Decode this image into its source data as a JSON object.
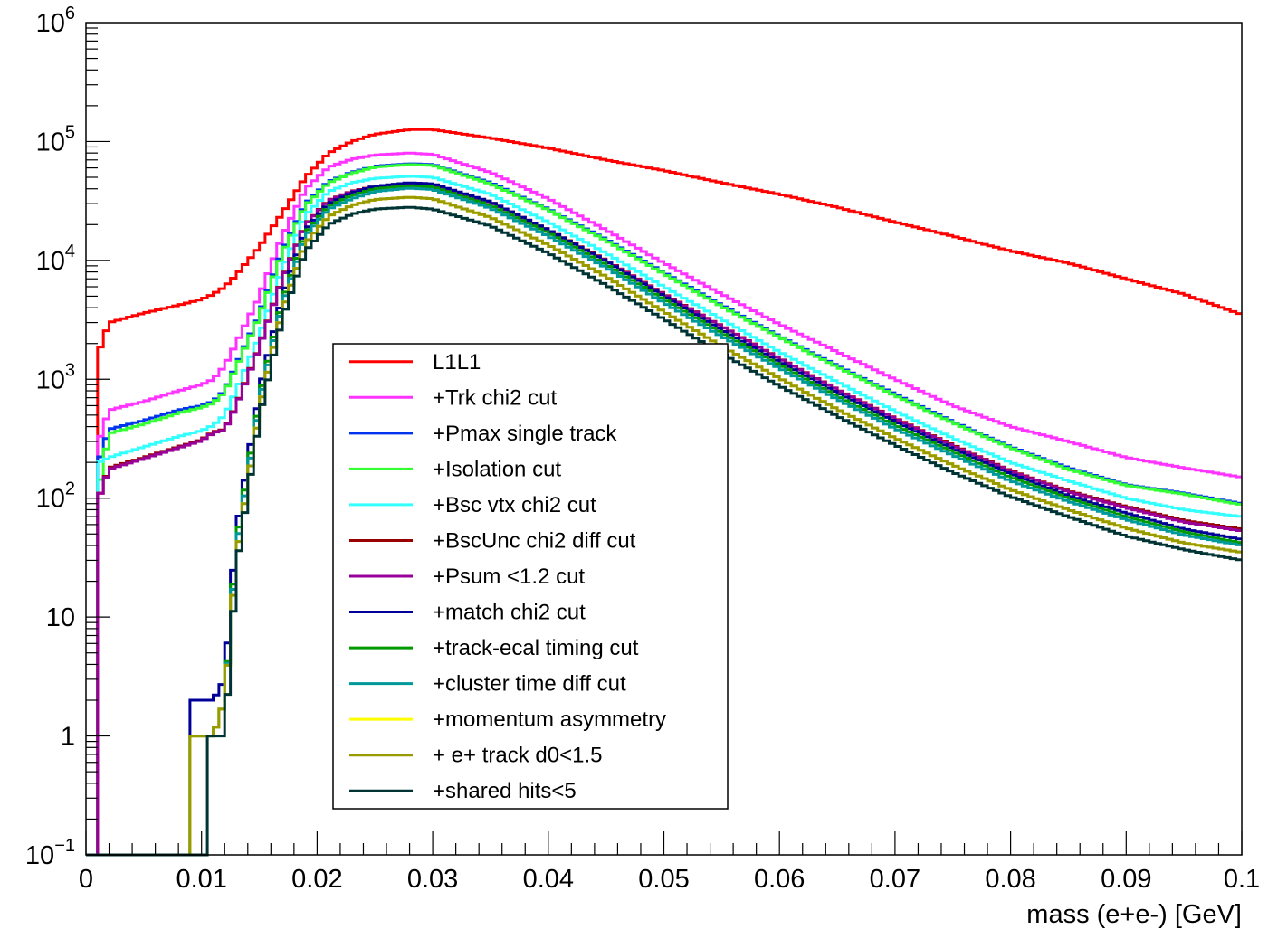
{
  "chart_data": {
    "type": "line",
    "xlabel": "mass (e+e-) [GeV]",
    "ylabel": "",
    "xlim": [
      0,
      0.1
    ],
    "ylim": [
      0.1,
      1000000
    ],
    "yscale": "log",
    "grid": false,
    "legend_position": "center-left",
    "x_ticks": [
      {
        "value": 0,
        "label": "0"
      },
      {
        "value": 0.01,
        "label": "0.01"
      },
      {
        "value": 0.02,
        "label": "0.02"
      },
      {
        "value": 0.03,
        "label": "0.03"
      },
      {
        "value": 0.04,
        "label": "0.04"
      },
      {
        "value": 0.05,
        "label": "0.05"
      },
      {
        "value": 0.06,
        "label": "0.06"
      },
      {
        "value": 0.07,
        "label": "0.07"
      },
      {
        "value": 0.08,
        "label": "0.08"
      },
      {
        "value": 0.09,
        "label": "0.09"
      },
      {
        "value": 0.1,
        "label": "0.1"
      }
    ],
    "y_ticks": [
      {
        "value": 0.1,
        "base": "10",
        "exp": "−1"
      },
      {
        "value": 1,
        "base": "1",
        "exp": ""
      },
      {
        "value": 10,
        "base": "10",
        "exp": ""
      },
      {
        "value": 100,
        "base": "10",
        "exp": "2"
      },
      {
        "value": 1000,
        "base": "10",
        "exp": "3"
      },
      {
        "value": 10000,
        "base": "10",
        "exp": "4"
      },
      {
        "value": 100000,
        "base": "10",
        "exp": "5"
      },
      {
        "value": 1000000,
        "base": "10",
        "exp": "6"
      }
    ],
    "x": [
      0.0011,
      0.002,
      0.005,
      0.008,
      0.01,
      0.011,
      0.012,
      0.013,
      0.015,
      0.017,
      0.019,
      0.021,
      0.023,
      0.025,
      0.028,
      0.03,
      0.035,
      0.04,
      0.045,
      0.05,
      0.055,
      0.06,
      0.065,
      0.07,
      0.075,
      0.08,
      0.085,
      0.09,
      0.095,
      0.1
    ],
    "series": [
      {
        "name": "L1L1",
        "color": "#ff0000",
        "values": [
          1700,
          3000,
          3600,
          4200,
          4700,
          5200,
          6000,
          7500,
          13000,
          25000,
          50000,
          80000,
          100000,
          115000,
          126000,
          126000,
          107000,
          88000,
          70000,
          57000,
          45000,
          36000,
          28000,
          21000,
          16000,
          12000,
          9500,
          7000,
          5200,
          3500
        ]
      },
      {
        "name": "+Trk chi2 cut",
        "color": "#ff33ff",
        "values": [
          300,
          550,
          650,
          800,
          900,
          1000,
          1300,
          2000,
          5000,
          16000,
          40000,
          61000,
          71000,
          77000,
          80000,
          78000,
          55000,
          33000,
          18000,
          9500,
          5200,
          2900,
          1700,
          1000,
          600,
          400,
          300,
          220,
          180,
          150
        ]
      },
      {
        "name": "+Pmax single track",
        "color": "#0033ee",
        "values": [
          200,
          380,
          450,
          550,
          600,
          650,
          800,
          1300,
          3500,
          12000,
          30000,
          46000,
          55000,
          62000,
          65000,
          64000,
          45000,
          27000,
          15000,
          7900,
          4200,
          2300,
          1300,
          750,
          440,
          270,
          180,
          130,
          110,
          90
        ]
      },
      {
        "name": "+Isolation cut",
        "color": "#33ff33",
        "values": [
          120,
          350,
          420,
          520,
          580,
          630,
          780,
          1250,
          3400,
          11500,
          29000,
          45000,
          54000,
          61000,
          64000,
          63000,
          44000,
          26500,
          14700,
          7700,
          4100,
          2250,
          1270,
          730,
          430,
          265,
          175,
          128,
          108,
          88
        ]
      },
      {
        "name": "+Bsc vtx chi2 cut",
        "color": "#33ffff",
        "values": [
          200,
          220,
          270,
          330,
          370,
          410,
          500,
          800,
          2300,
          8500,
          24000,
          38000,
          45000,
          49000,
          51000,
          50000,
          36000,
          21000,
          11500,
          6000,
          3200,
          1700,
          950,
          540,
          320,
          200,
          140,
          100,
          80,
          70
        ]
      },
      {
        "name": "+BscUnc chi2 diff cut",
        "color": "#990000",
        "values": [
          100,
          180,
          220,
          270,
          310,
          360,
          380,
          600,
          1900,
          7000,
          20000,
          32000,
          38000,
          42000,
          44000,
          43000,
          31000,
          18000,
          10000,
          5200,
          2800,
          1500,
          820,
          470,
          280,
          170,
          115,
          85,
          65,
          55
        ]
      },
      {
        "name": "+Psum <1.2 cut",
        "color": "#990099",
        "values": [
          100,
          175,
          215,
          265,
          305,
          355,
          375,
          590,
          1880,
          6900,
          19800,
          31700,
          37700,
          41700,
          43700,
          42700,
          30700,
          17800,
          9900,
          5150,
          2780,
          1490,
          815,
          465,
          275,
          168,
          113,
          83,
          63,
          53
        ]
      },
      {
        "name": "+match chi2 cut",
        "color": "#000099",
        "values": [
          0,
          0,
          0,
          0,
          2,
          2,
          3,
          50,
          800,
          5000,
          18000,
          30000,
          37000,
          42000,
          45000,
          44000,
          31000,
          18000,
          9800,
          5000,
          2600,
          1400,
          770,
          440,
          260,
          160,
          105,
          75,
          55,
          45
        ]
      },
      {
        "name": "+track-ecal timing cut",
        "color": "#009900",
        "values": [
          0,
          0,
          0,
          0,
          1,
          1,
          2,
          40,
          700,
          4600,
          17000,
          28500,
          35000,
          40000,
          42500,
          41500,
          29000,
          17000,
          9200,
          4700,
          2450,
          1320,
          720,
          410,
          245,
          150,
          100,
          70,
          52,
          42
        ]
      },
      {
        "name": "+cluster time diff cut",
        "color": "#009999",
        "values": [
          0,
          0,
          0,
          0,
          1,
          1,
          2,
          35,
          650,
          4300,
          16000,
          27000,
          33000,
          38000,
          40500,
          39500,
          27500,
          16000,
          8700,
          4400,
          2300,
          1240,
          680,
          385,
          230,
          140,
          94,
          66,
          49,
          40
        ]
      },
      {
        "name": "+momentum asymmetry",
        "color": "#ffff00",
        "values": [
          0,
          0,
          0,
          0,
          1,
          1,
          2,
          30,
          560,
          3800,
          14000,
          23500,
          29000,
          32500,
          34000,
          33000,
          23000,
          13500,
          7300,
          3700,
          1900,
          1020,
          560,
          320,
          190,
          118,
          80,
          56,
          42,
          35
        ]
      },
      {
        "name": "+ e+ track d0<1.5",
        "color": "#999900",
        "values": [
          0,
          0,
          0,
          0,
          1,
          1,
          2,
          30,
          560,
          3800,
          14000,
          23500,
          29000,
          32500,
          34000,
          33000,
          23000,
          13500,
          7300,
          3700,
          1900,
          1020,
          560,
          320,
          190,
          118,
          80,
          56,
          42,
          35
        ]
      },
      {
        "name": "+shared hits<5",
        "color": "#003333",
        "values": [
          0,
          0,
          0,
          0,
          0,
          1,
          1,
          25,
          480,
          3300,
          12000,
          20000,
          24500,
          27000,
          28000,
          27000,
          19500,
          11500,
          6200,
          3200,
          1650,
          880,
          490,
          280,
          165,
          103,
          70,
          48,
          37,
          30
        ]
      }
    ]
  }
}
